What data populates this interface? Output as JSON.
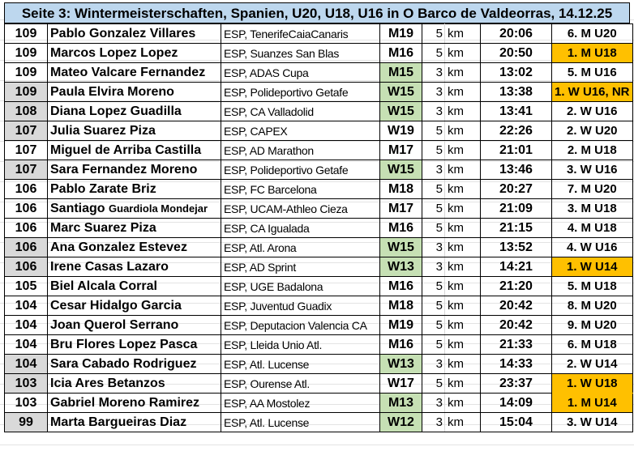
{
  "title": "Seite 3: Wintermeisterschaften, Spanien, U20, U18, U16 in O Barco de Valdeorras, 14.12.25",
  "colors": {
    "header": "#bdd7ee",
    "female_points": "#d9d9d9",
    "youth_class": "#c6e0b4",
    "winner": "#ffc000"
  },
  "rows": [
    {
      "points": "109",
      "name": "Pablo Gonzalez Villares",
      "club": "ESP, TenerifeCaiaCanaris",
      "class": "M19",
      "dist": "5",
      "unit": "km",
      "time": "20:06",
      "place": "6. M U20"
    },
    {
      "points": "109",
      "name": "Marcos Lopez Lopez",
      "club": "ESP, Suanzes San Blas",
      "class": "M16",
      "dist": "5",
      "unit": "km",
      "time": "20:50",
      "place": "1. M U18"
    },
    {
      "points": "109",
      "name": "Mateo Valcare Fernandez",
      "club": "ESP, ADAS Cupa",
      "class": "M15",
      "dist": "3",
      "unit": "km",
      "time": "13:02",
      "place": "5. M U16"
    },
    {
      "points": "109",
      "name": "Paula Elvira Moreno",
      "club": "ESP, Polideportivo Getafe",
      "class": "W15",
      "dist": "3",
      "unit": "km",
      "time": "13:38",
      "place": "1. W U16, NR"
    },
    {
      "points": "108",
      "name": "Diana Lopez Guadilla",
      "club": "ESP, CA Valladolid",
      "class": "W15",
      "dist": "3",
      "unit": "km",
      "time": "13:41",
      "place": "2. W U16"
    },
    {
      "points": "107",
      "name": "Julia Suarez Piza",
      "club": "ESP, CAPEX",
      "class": "W19",
      "dist": "5",
      "unit": "km",
      "time": "22:26",
      "place": "2. W U20"
    },
    {
      "points": "107",
      "name": "Miguel de Arriba Castilla",
      "club": "ESP, AD Marathon",
      "class": "M17",
      "dist": "5",
      "unit": "km",
      "time": "21:01",
      "place": "2. M U18"
    },
    {
      "points": "107",
      "name": "Sara Fernandez Moreno",
      "club": "ESP, Polideportivo Getafe",
      "class": "W15",
      "dist": "3",
      "unit": "km",
      "time": "13:46",
      "place": "3. W U16"
    },
    {
      "points": "106",
      "name": "Pablo Zarate Briz",
      "club": "ESP, FC Barcelona",
      "class": "M18",
      "dist": "5",
      "unit": "km",
      "time": "20:27",
      "place": "7. M U20"
    },
    {
      "points": "106",
      "name": "Santiago",
      "name_small": "Guardiola Mondejar",
      "club": "ESP, UCAM-Athleo Cieza",
      "class": "M17",
      "dist": "5",
      "unit": "km",
      "time": "21:09",
      "place": "3. M U18"
    },
    {
      "points": "106",
      "name": "Marc Suarez Piza",
      "club": "ESP, CA Igualada",
      "class": "M16",
      "dist": "5",
      "unit": "km",
      "time": "21:15",
      "place": "4. M U18"
    },
    {
      "points": "106",
      "name": "Ana Gonzalez Estevez",
      "club": "ESP, Atl. Arona",
      "class": "W15",
      "dist": "3",
      "unit": "km",
      "time": "13:52",
      "place": "4. W U16"
    },
    {
      "points": "106",
      "name": "Irene Casas Lazaro",
      "club": "ESP, AD Sprint",
      "class": "W13",
      "dist": "3",
      "unit": "km",
      "time": "14:21",
      "place": "1. W U14"
    },
    {
      "points": "105",
      "name": "Biel Alcala Corral",
      "club": "ESP, UGE Badalona",
      "class": "M16",
      "dist": "5",
      "unit": "km",
      "time": "21:20",
      "place": "5. M U18"
    },
    {
      "points": "104",
      "name": "Cesar Hidalgo Garcia",
      "club": "ESP, Juventud Guadix",
      "class": "M18",
      "dist": "5",
      "unit": "km",
      "time": "20:42",
      "place": "8. M U20"
    },
    {
      "points": "104",
      "name": "Joan Querol Serrano",
      "club": "ESP, Deputacion Valencia CA",
      "class": "M19",
      "dist": "5",
      "unit": "km",
      "time": "20:42",
      "place": "9. M U20"
    },
    {
      "points": "104",
      "name": "Bru Flores Lopez Pasca",
      "club": "ESP, Lleida Unio Atl.",
      "class": "M16",
      "dist": "5",
      "unit": "km",
      "time": "21:33",
      "place": "6. M U18"
    },
    {
      "points": "104",
      "name": "Sara Cabado Rodriguez",
      "club": "ESP, Atl. Lucense",
      "class": "W13",
      "dist": "3",
      "unit": "km",
      "time": "14:33",
      "place": "2. W U14"
    },
    {
      "points": "103",
      "name": "Icia Ares Betanzos",
      "club": "ESP, Ourense Atl.",
      "class": "W17",
      "dist": "5",
      "unit": "km",
      "time": "23:37",
      "place": "1. W U18"
    },
    {
      "points": "103",
      "name": "Gabriel Moreno Ramirez",
      "club": "ESP, AA Mostolez",
      "class": "M13",
      "dist": "3",
      "unit": "km",
      "time": "14:09",
      "place": "1. M U14"
    },
    {
      "points": "99",
      "name": "Marta Bargueiras Diaz",
      "club": "ESP, Atl. Lucense",
      "class": "W12",
      "dist": "3",
      "unit": "km",
      "time": "15:04",
      "place": "3. W U14"
    }
  ]
}
